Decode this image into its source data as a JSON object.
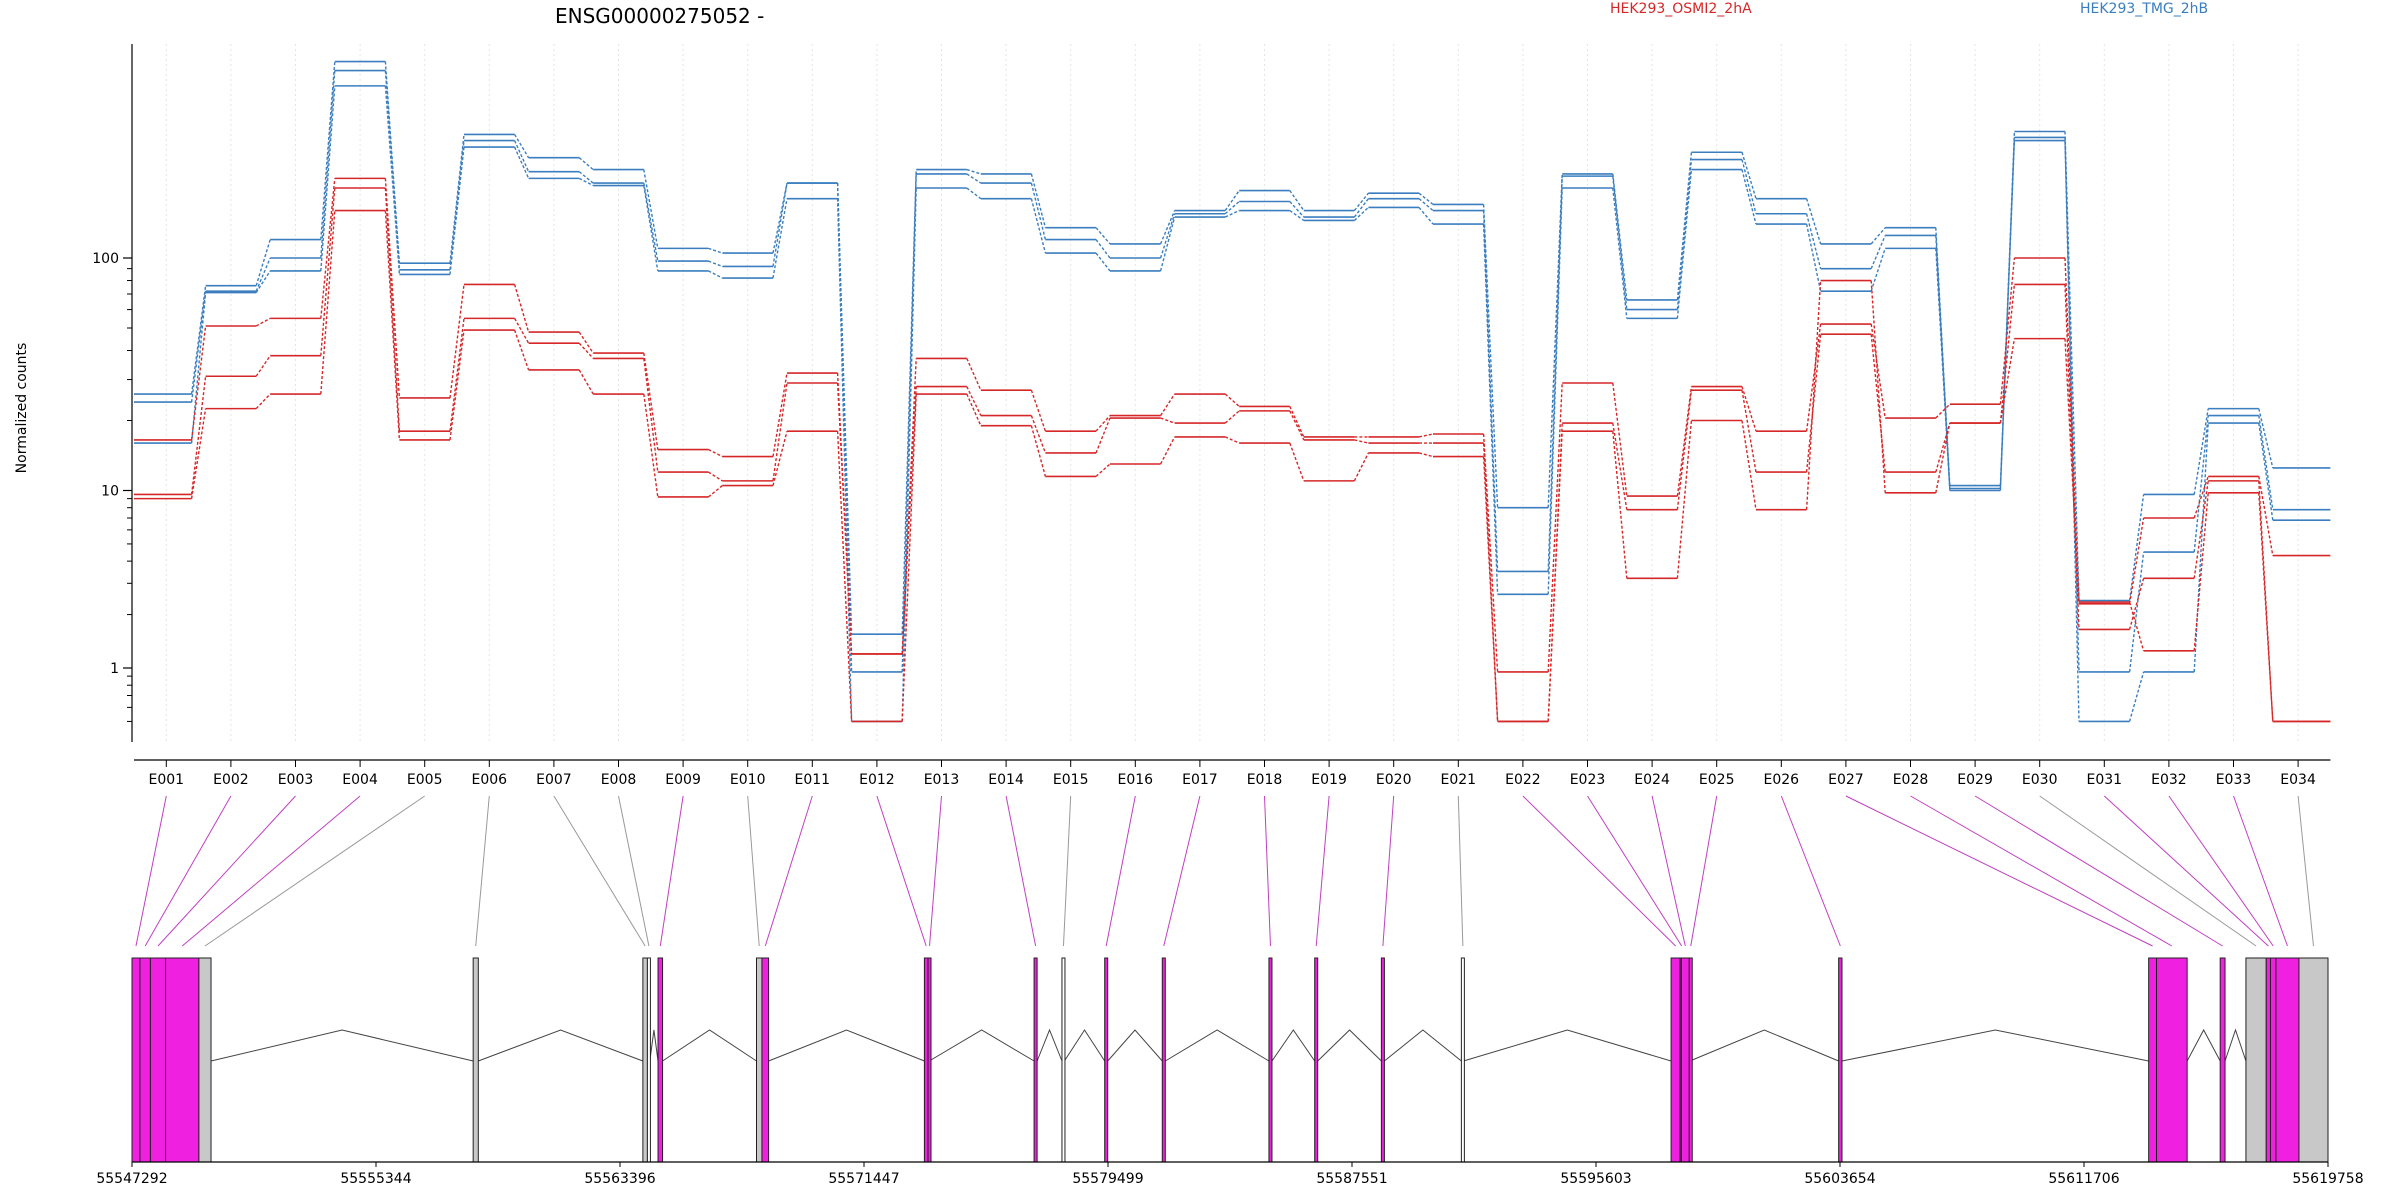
{
  "chart_data": {
    "type": "line",
    "title": "ENSG00000275052 -",
    "ylabel": "Normalized counts",
    "y_scale": "log",
    "ylim": [
      0.5,
      1000
    ],
    "y_ticks": [
      "1",
      "10",
      "100"
    ],
    "grid": "vertical dotted lines at exon centers",
    "legend": [
      {
        "name": "HEK293_OSMI2_2hA",
        "color": "#d62728",
        "placement": "top-center"
      },
      {
        "name": "HEK293_TMG_2hB",
        "color": "#3a7ebf",
        "placement": "top-right"
      }
    ],
    "categories": [
      "E001",
      "E002",
      "E003",
      "E004",
      "E005",
      "E006",
      "E007",
      "E008",
      "E009",
      "E010",
      "E011",
      "E012",
      "E013",
      "E014",
      "E015",
      "E016",
      "E017",
      "E018",
      "E019",
      "E020",
      "E021",
      "E022",
      "E023",
      "E024",
      "E025",
      "E026",
      "E027",
      "E028",
      "E029",
      "E030",
      "E031",
      "E032",
      "E033",
      "E034"
    ],
    "series": [
      {
        "group": "TMG",
        "color": "#3a7ebf",
        "values": [
          26,
          76,
          120,
          700,
          95,
          340,
          270,
          240,
          110,
          105,
          210,
          1.55,
          240,
          230,
          135,
          115,
          160,
          195,
          160,
          190,
          170,
          8,
          230,
          66,
          285,
          180,
          115,
          135,
          10.5,
          350,
          2.4,
          9.5,
          22.5,
          12.5
        ]
      },
      {
        "group": "TMG",
        "color": "#3a7ebf",
        "values": [
          24,
          72,
          100,
          640,
          89,
          320,
          235,
          210,
          97,
          92,
          210,
          0.95,
          230,
          210,
          120,
          100,
          155,
          175,
          150,
          180,
          160,
          3.5,
          225,
          60,
          265,
          155,
          90,
          125,
          10.2,
          330,
          0.95,
          4.5,
          21,
          7.8
        ]
      },
      {
        "group": "TMG",
        "color": "#3a7ebf",
        "values": [
          16,
          71,
          88,
          550,
          85,
          300,
          220,
          205,
          88,
          82,
          180,
          0.5,
          200,
          180,
          105,
          88,
          150,
          160,
          145,
          165,
          140,
          2.6,
          200,
          55,
          240,
          140,
          72,
          110,
          10.0,
          320,
          0.5,
          0.95,
          19.5,
          6.8
        ]
      },
      {
        "group": "OSMI2",
        "color": "#d62728",
        "values": [
          16.5,
          51,
          55,
          220,
          25,
          77,
          48,
          39,
          15,
          14,
          32,
          1.2,
          37,
          27,
          18,
          21,
          26,
          23,
          17,
          17,
          17.5,
          0.95,
          29,
          9.3,
          28,
          18,
          52,
          20.5,
          23.5,
          100,
          2.3,
          7,
          11.5,
          4.3
        ]
      },
      {
        "group": "OSMI2",
        "color": "#d62728",
        "values": [
          9.5,
          31,
          38,
          200,
          18,
          55,
          43,
          37,
          12,
          11,
          29,
          1.2,
          28,
          21,
          14.5,
          20.5,
          19.5,
          22,
          16.5,
          16,
          16,
          0.5,
          19.5,
          7.8,
          27,
          12,
          47,
          12,
          19.5,
          77,
          1.65,
          3.2,
          11,
          0.5
        ]
      },
      {
        "group": "OSMI2",
        "color": "#d62728",
        "values": [
          9,
          22.5,
          26,
          160,
          16.5,
          49,
          33,
          26,
          9.2,
          10.5,
          18,
          0.5,
          26,
          19,
          11.5,
          13,
          17,
          16,
          11,
          14.5,
          14,
          0.5,
          18,
          3.2,
          20,
          7.8,
          80,
          9.7,
          19.5,
          45,
          2.35,
          1.25,
          9.7,
          0.5
        ]
      }
    ],
    "genome_axis": {
      "ticks": [
        "55547292",
        "55555344",
        "55563396",
        "55571447",
        "55579499",
        "55587551",
        "55595603",
        "55603654",
        "55611706",
        "55619758"
      ],
      "start": 55547292,
      "end": 55619758
    },
    "exons": [
      {
        "id": "E001",
        "start": 55547292,
        "end": 55547554,
        "color": "#f020e0"
      },
      {
        "id": "E002",
        "start": 55547554,
        "end": 55547900,
        "color": "#f020e0"
      },
      {
        "id": "E003",
        "start": 55547900,
        "end": 55548400,
        "color": "#f020e0"
      },
      {
        "id": "E004",
        "start": 55548400,
        "end": 55549500,
        "color": "#f020e0"
      },
      {
        "id": "E005",
        "start": 55549500,
        "end": 55549900,
        "color": "#c8c8c8"
      },
      {
        "id": "E006",
        "start": 55558550,
        "end": 55558720,
        "color": "#c8c8c8"
      },
      {
        "id": "E007",
        "start": 55564150,
        "end": 55564300,
        "color": "#c8c8c8"
      },
      {
        "id": "E008",
        "start": 55564300,
        "end": 55564380,
        "color": "#ffffff"
      },
      {
        "id": "E009",
        "start": 55564650,
        "end": 55564800,
        "color": "#f020e0"
      },
      {
        "id": "E010",
        "start": 55567900,
        "end": 55568080,
        "color": "#c8c8c8"
      },
      {
        "id": "E011",
        "start": 55568080,
        "end": 55568300,
        "color": "#f020e0"
      },
      {
        "id": "E012",
        "start": 55573440,
        "end": 55573560,
        "color": "#f020e0"
      },
      {
        "id": "E013",
        "start": 55573560,
        "end": 55573600,
        "color": "#f020e0"
      },
      {
        "id": "E014",
        "start": 55577060,
        "end": 55577160,
        "color": "#f020e0"
      },
      {
        "id": "E015",
        "start": 55577980,
        "end": 55578060,
        "color": "#ffffff"
      },
      {
        "id": "E016",
        "start": 55579390,
        "end": 55579490,
        "color": "#f020e0"
      },
      {
        "id": "E017",
        "start": 55581290,
        "end": 55581390,
        "color": "#f020e0"
      },
      {
        "id": "E018",
        "start": 55584810,
        "end": 55584910,
        "color": "#f020e0"
      },
      {
        "id": "E019",
        "start": 55586320,
        "end": 55586420,
        "color": "#f020e0"
      },
      {
        "id": "E020",
        "start": 55588520,
        "end": 55588620,
        "color": "#f020e0"
      },
      {
        "id": "E021",
        "start": 55591160,
        "end": 55591230,
        "color": "#ffffff"
      },
      {
        "id": "E022",
        "start": 55598080,
        "end": 55598380,
        "color": "#f020e0"
      },
      {
        "id": "E023",
        "start": 55598380,
        "end": 55598420,
        "color": "#f020e0"
      },
      {
        "id": "E024",
        "start": 55598420,
        "end": 55598680,
        "color": "#f020e0"
      },
      {
        "id": "E025",
        "start": 55598680,
        "end": 55598700,
        "color": "#f020e0"
      },
      {
        "id": "E026",
        "start": 55603610,
        "end": 55603720,
        "color": "#f020e0"
      },
      {
        "id": "E027",
        "start": 55613840,
        "end": 55614100,
        "color": "#f020e0"
      },
      {
        "id": "E028",
        "start": 55614100,
        "end": 55615110,
        "color": "#f020e0"
      },
      {
        "id": "E029",
        "start": 55616200,
        "end": 55616360,
        "color": "#f020e0"
      },
      {
        "id": "E030",
        "start": 55617050,
        "end": 55617720,
        "color": "#c8c8c8"
      },
      {
        "id": "E031",
        "start": 55617720,
        "end": 55617860,
        "color": "#f020e0"
      },
      {
        "id": "E032",
        "start": 55617860,
        "end": 55618040,
        "color": "#f020e0"
      },
      {
        "id": "E033",
        "start": 55618040,
        "end": 55618800,
        "color": "#f020e0"
      },
      {
        "id": "E034",
        "start": 55618800,
        "end": 55619758,
        "color": "#c8c8c8"
      }
    ]
  }
}
